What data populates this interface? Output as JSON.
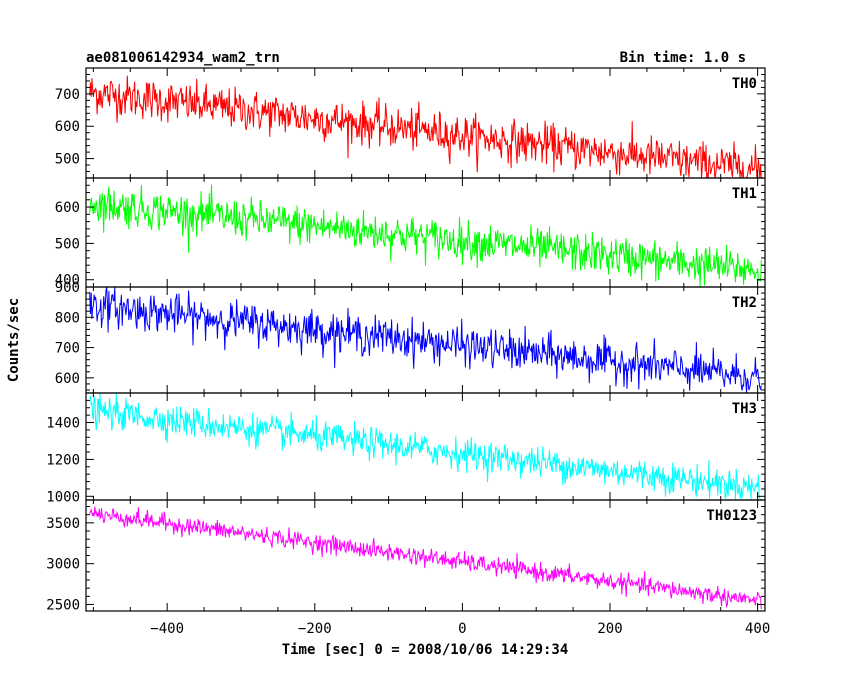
{
  "header": {
    "title": "ae081006142934_wam2_trn",
    "bin_time": "Bin time: 1.0 s"
  },
  "chart_data": {
    "type": "line",
    "xlabel": "Time [sec] 0 = 2008/10/06 14:29:34",
    "ylabel": "Counts/sec",
    "xlim": [
      -510,
      410
    ],
    "x_ticks": [
      -400,
      -200,
      0,
      200,
      400
    ],
    "x_range_data": [
      -505,
      405
    ],
    "panels": [
      {
        "name": "TH0",
        "color": "#ff0000",
        "ylim": [
          440,
          780
        ],
        "y_ticks": [
          500,
          600,
          700
        ],
        "start": 705,
        "end": 465,
        "noise": 32
      },
      {
        "name": "TH1",
        "color": "#00ff00",
        "ylim": [
          380,
          680
        ],
        "y_ticks": [
          400,
          500,
          600
        ],
        "start": 610,
        "end": 425,
        "noise": 27
      },
      {
        "name": "TH2",
        "color": "#0000ff",
        "ylim": [
          550,
          900
        ],
        "y_ticks": [
          600,
          700,
          800,
          900
        ],
        "start": 840,
        "end": 600,
        "noise": 32
      },
      {
        "name": "TH3",
        "color": "#00ffff",
        "ylim": [
          980,
          1560
        ],
        "y_ticks": [
          1000,
          1200,
          1400
        ],
        "start": 1465,
        "end": 1045,
        "noise": 42
      },
      {
        "name": "TH0123",
        "color": "#ff00ff",
        "ylim": [
          2420,
          3780
        ],
        "y_ticks": [
          2500,
          3000,
          3500
        ],
        "start": 3620,
        "end": 2540,
        "noise": 55
      }
    ]
  }
}
